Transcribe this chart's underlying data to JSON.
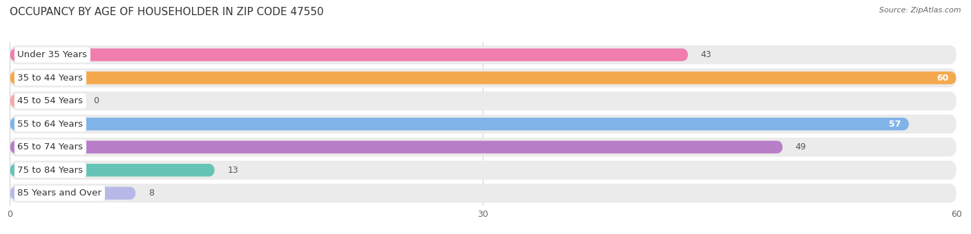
{
  "title": "OCCUPANCY BY AGE OF HOUSEHOLDER IN ZIP CODE 47550",
  "source": "Source: ZipAtlas.com",
  "categories": [
    "Under 35 Years",
    "35 to 44 Years",
    "45 to 54 Years",
    "55 to 64 Years",
    "65 to 74 Years",
    "75 to 84 Years",
    "85 Years and Over"
  ],
  "values": [
    43,
    60,
    0,
    57,
    49,
    13,
    8
  ],
  "bar_colors": [
    "#F07DAE",
    "#F5A94E",
    "#F4AAAA",
    "#80B3E8",
    "#B87EC8",
    "#65C4B5",
    "#B8B8E8"
  ],
  "bar_bg_color": "#EBEBEB",
  "row_bg_color": "#F5F5F5",
  "xlim": [
    0,
    60
  ],
  "xticks": [
    0,
    30,
    60
  ],
  "title_fontsize": 11,
  "label_fontsize": 9.5,
  "value_fontsize": 9,
  "background_color": "#FFFFFF",
  "label_pill_color": "#FFFFFF",
  "value_inside_color": "#FFFFFF",
  "value_outside_color": "#555555",
  "inside_threshold": 50
}
